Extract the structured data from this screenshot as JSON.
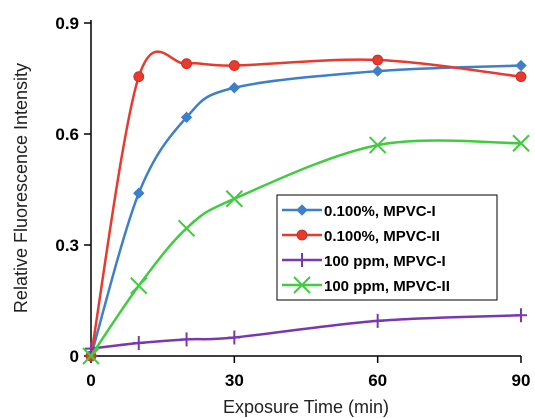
{
  "chart_data": {
    "type": "line",
    "xlabel": "Exposure Time (min)",
    "ylabel": "Relative Fluorescence Intensity",
    "xlim": [
      0,
      90
    ],
    "ylim": [
      0,
      0.9
    ],
    "x_ticks": [
      "0",
      "30",
      "60",
      "90"
    ],
    "y_ticks": [
      "0",
      "0.3",
      "0.6",
      "0.9"
    ],
    "grid": false,
    "smooth": true,
    "legend_position": "center-right",
    "series": [
      {
        "name": "0.100%, MPVC-I",
        "color": "#3d7fc9",
        "marker": "diamond",
        "points": [
          [
            0,
            0.0
          ],
          [
            10,
            0.44
          ],
          [
            20,
            0.645
          ],
          [
            30,
            0.725
          ],
          [
            60,
            0.77
          ],
          [
            90,
            0.785
          ]
        ]
      },
      {
        "name": "0.100%, MPVC-II",
        "color": "#e83a2e",
        "marker": "circle",
        "points": [
          [
            0,
            0.0
          ],
          [
            10,
            0.755
          ],
          [
            20,
            0.79
          ],
          [
            30,
            0.785
          ],
          [
            60,
            0.8
          ],
          [
            90,
            0.755
          ]
        ]
      },
      {
        "name": "100 ppm, MPVC-I",
        "color": "#7a38b0",
        "marker": "plus",
        "points": [
          [
            0,
            0.02
          ],
          [
            10,
            0.035
          ],
          [
            20,
            0.045
          ],
          [
            30,
            0.05
          ],
          [
            60,
            0.095
          ],
          [
            90,
            0.11
          ]
        ]
      },
      {
        "name": "100 ppm, MPVC-II",
        "color": "#3fcc3f",
        "marker": "x",
        "points": [
          [
            0,
            0.0
          ],
          [
            10,
            0.19
          ],
          [
            20,
            0.345
          ],
          [
            30,
            0.425
          ],
          [
            60,
            0.57
          ],
          [
            90,
            0.575
          ]
        ]
      }
    ]
  }
}
